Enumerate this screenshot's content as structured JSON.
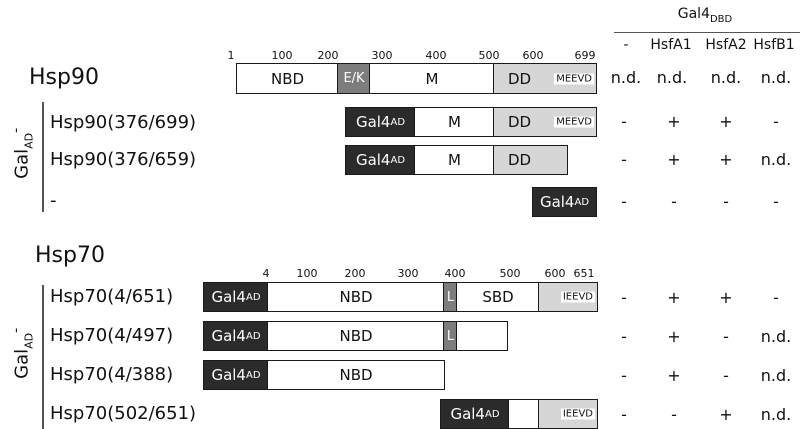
{
  "header": {
    "group_label": "Gal4",
    "group_sub": "DBD",
    "columns": [
      "-",
      "HsfA1",
      "HsfA2",
      "HsfB1"
    ]
  },
  "hsp90": {
    "title": "Hsp90",
    "ticks": [
      "1",
      "100",
      "200",
      "300",
      "400",
      "500",
      "600",
      "699"
    ],
    "domains": {
      "nbd": "NBD",
      "ek": "E/K",
      "m": "M",
      "dd": "DD",
      "motif": "MEEVD"
    },
    "results": [
      "n.d.",
      "n.d.",
      "n.d.",
      "n.d."
    ]
  },
  "gal_ad_label": "Gal",
  "gal_ad_sub": "AD",
  "gal_ad_suffix": "-",
  "gal4ad": {
    "main": "Gal4",
    "sub": "AD"
  },
  "hsp90_rows": [
    {
      "label": "Hsp90(376/699)",
      "results": [
        "-",
        "+",
        "+",
        "-"
      ]
    },
    {
      "label": "Hsp90(376/659)",
      "results": [
        "-",
        "+",
        "+",
        "n.d."
      ]
    },
    {
      "label": "-",
      "results": [
        "-",
        "-",
        "-",
        "-"
      ]
    }
  ],
  "hsp70": {
    "title": "Hsp70",
    "ticks": [
      "4",
      "100",
      "200",
      "300",
      "400",
      "500",
      "600",
      "651"
    ],
    "domains": {
      "nbd": "NBD",
      "l": "L",
      "sbd": "SBD",
      "motif": "IEEVD"
    }
  },
  "hsp70_rows": [
    {
      "label": "Hsp70(4/651)",
      "results": [
        "-",
        "+",
        "+",
        "-"
      ]
    },
    {
      "label": "Hsp70(4/497)",
      "results": [
        "-",
        "+",
        "-",
        "n.d."
      ]
    },
    {
      "label": "Hsp70(4/388)",
      "results": [
        "-",
        "+",
        "-",
        "n.d."
      ]
    },
    {
      "label": "Hsp70(502/651)",
      "results": [
        "-",
        "-",
        "+",
        "n.d."
      ]
    }
  ]
}
